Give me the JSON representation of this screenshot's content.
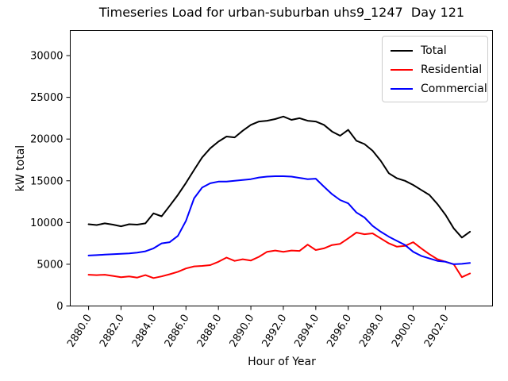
{
  "title": "Timeseries Load for urban-suburban uhs9_1247  Day 121",
  "chart_data": {
    "type": "line",
    "title": "Timeseries Load for urban-suburban uhs9_1247  Day 121",
    "xlabel": "Hour of Year",
    "ylabel": "kW total",
    "xlim": [
      2878.87,
      2904.89
    ],
    "ylim": [
      0,
      33000
    ],
    "grid": false,
    "legend_position": "upper right",
    "x_tick_labels": [
      "2880.0",
      "2882.0",
      "2884.0",
      "2886.0",
      "2888.0",
      "2890.0",
      "2892.0",
      "2894.0",
      "2896.0",
      "2898.0",
      "2900.0",
      "2902.0"
    ],
    "x_tick_values": [
      2880,
      2882,
      2884,
      2886,
      2888,
      2890,
      2892,
      2894,
      2896,
      2898,
      2900,
      2902
    ],
    "y_tick_labels": [
      "0",
      "5000",
      "10000",
      "15000",
      "20000",
      "25000",
      "30000"
    ],
    "y_tick_values": [
      0,
      5000,
      10000,
      15000,
      20000,
      25000,
      30000
    ],
    "x": [
      2880.0,
      2880.5,
      2881.0,
      2881.5,
      2882.0,
      2882.5,
      2883.0,
      2883.5,
      2884.0,
      2884.5,
      2885.0,
      2885.5,
      2886.0,
      2886.5,
      2887.0,
      2887.5,
      2888.0,
      2888.5,
      2889.0,
      2889.5,
      2890.0,
      2890.5,
      2891.0,
      2891.5,
      2892.0,
      2892.5,
      2893.0,
      2893.5,
      2894.0,
      2894.5,
      2895.0,
      2895.5,
      2896.0,
      2896.5,
      2897.0,
      2897.5,
      2898.0,
      2898.5,
      2899.0,
      2899.5,
      2900.0,
      2900.5,
      2901.0,
      2901.5,
      2902.0,
      2902.5,
      2903.0,
      2903.5
    ],
    "series": [
      {
        "name": "Total",
        "color": "#000000",
        "values": [
          9800,
          9700,
          9900,
          9750,
          9550,
          9800,
          9750,
          9900,
          11100,
          10750,
          12000,
          13300,
          14750,
          16300,
          17800,
          18900,
          19700,
          20300,
          20200,
          21000,
          21700,
          22100,
          22200,
          22400,
          22700,
          22300,
          22500,
          22200,
          22100,
          21700,
          20900,
          20400,
          21100,
          19800,
          19400,
          18600,
          17400,
          15900,
          15300,
          15000,
          14500,
          13900,
          13300,
          12200,
          10900,
          9300,
          8200,
          8900
        ]
      },
      {
        "name": "Residential",
        "color": "#ff0000",
        "values": [
          3750,
          3700,
          3750,
          3600,
          3450,
          3550,
          3400,
          3700,
          3350,
          3550,
          3800,
          4100,
          4500,
          4750,
          4800,
          4900,
          5300,
          5800,
          5400,
          5600,
          5450,
          5900,
          6500,
          6650,
          6500,
          6650,
          6600,
          7350,
          6700,
          6900,
          7300,
          7450,
          8100,
          8800,
          8600,
          8700,
          8100,
          7500,
          7100,
          7200,
          7650,
          6900,
          6200,
          5600,
          5300,
          5000,
          3450,
          3900
        ]
      },
      {
        "name": "Commercial",
        "color": "#0000ff",
        "values": [
          6050,
          6100,
          6150,
          6200,
          6250,
          6300,
          6400,
          6550,
          6900,
          7500,
          7650,
          8400,
          10200,
          12900,
          14200,
          14700,
          14900,
          14900,
          15000,
          15100,
          15200,
          15400,
          15500,
          15550,
          15550,
          15500,
          15350,
          15200,
          15250,
          14300,
          13400,
          12700,
          12300,
          11200,
          10600,
          9600,
          8900,
          8300,
          7800,
          7300,
          6500,
          6000,
          5700,
          5400,
          5300,
          5000,
          5050,
          5150
        ]
      }
    ]
  }
}
